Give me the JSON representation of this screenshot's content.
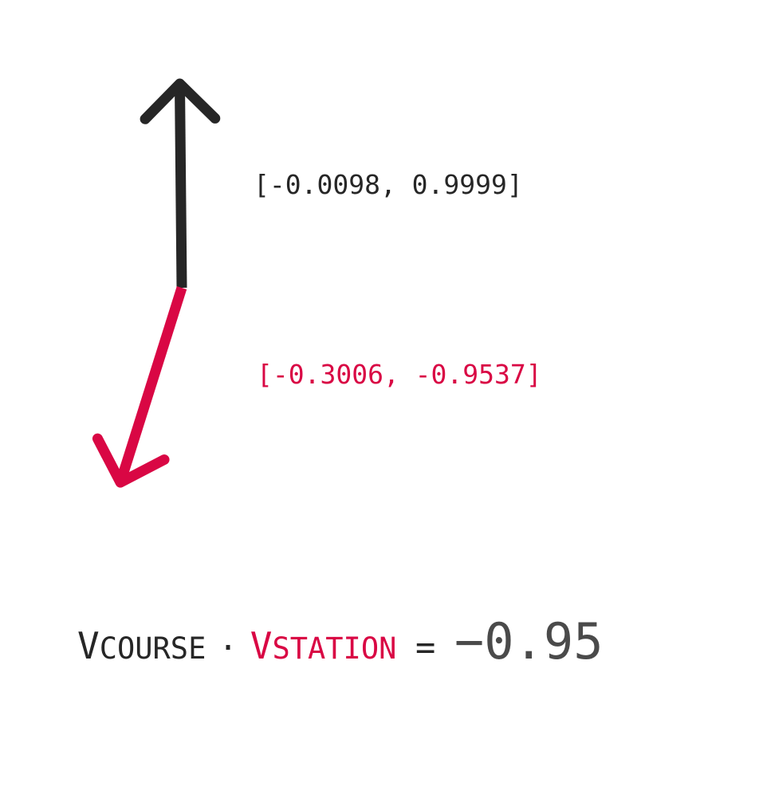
{
  "colors": {
    "course": "#262626",
    "station": "#d90744",
    "result": "#4a4a4a"
  },
  "vectors": {
    "course": {
      "label": "[-0.0098, 0.9999]",
      "x": -0.0098,
      "y": 0.9999
    },
    "station": {
      "label": "[-0.3006, -0.9537]",
      "x": -0.3006,
      "y": -0.9537
    }
  },
  "equation": {
    "course_symbol_initial": "V",
    "course_symbol_rest": "COURSE",
    "dot": "·",
    "station_symbol_initial": "V",
    "station_symbol_rest": "STATION",
    "equals": "=",
    "result": "−0.95"
  }
}
